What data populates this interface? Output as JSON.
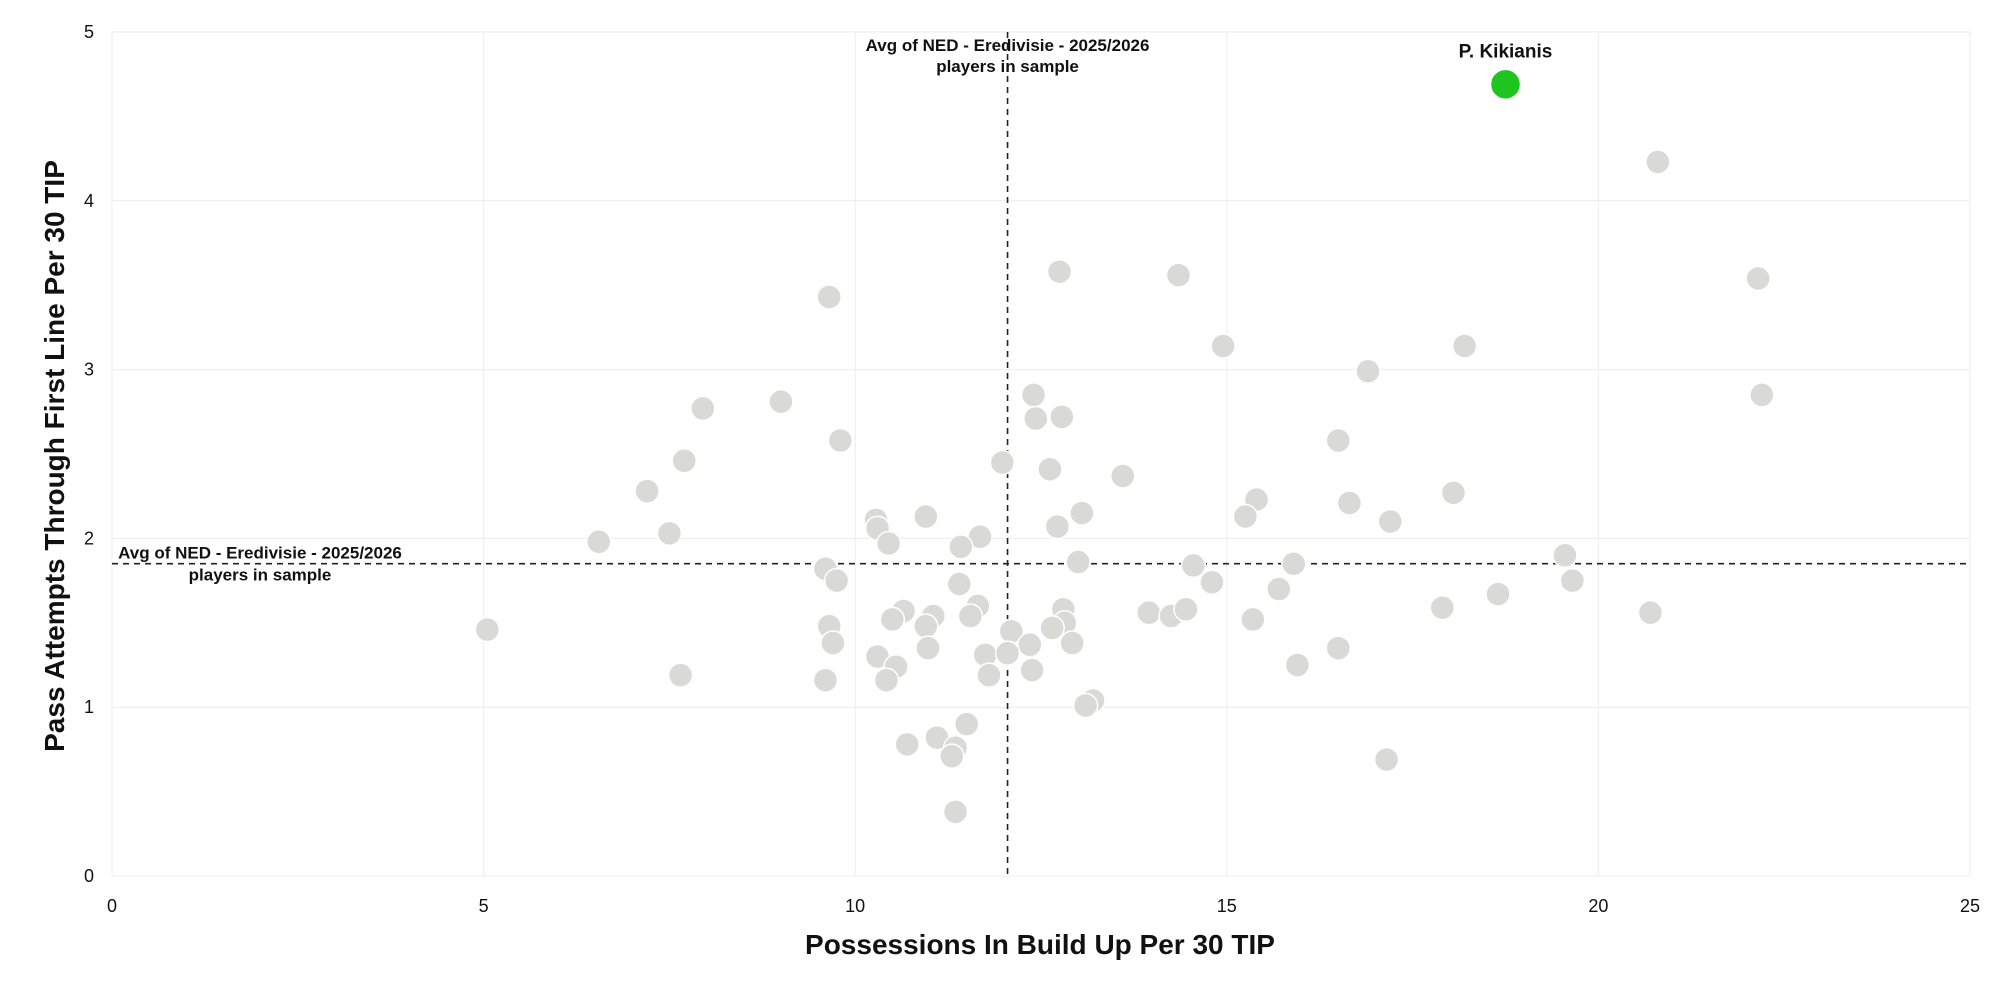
{
  "chart_data": {
    "type": "scatter",
    "xlabel": "Possessions In Build Up Per 30 TIP",
    "ylabel": "Pass Attempts Through First Line Per 30 TIP",
    "xlim": [
      0,
      25
    ],
    "ylim": [
      0,
      5
    ],
    "xticks": [
      0,
      5,
      10,
      15,
      20,
      25
    ],
    "yticks": [
      0,
      1,
      2,
      3,
      4,
      5
    ],
    "grid": true,
    "colors": {
      "point": "#d9d9d6",
      "highlight": "#1fc51f",
      "reference": "#222222"
    },
    "reference_lines": {
      "vertical": {
        "x": 12.05,
        "label_line1": "Avg of NED - Eredivisie - 2025/2026",
        "label_line2": "players in sample"
      },
      "horizontal": {
        "y": 1.85,
        "label_line1": "Avg of NED - Eredivisie - 2025/2026",
        "label_line2": "players in sample"
      }
    },
    "highlight": {
      "name": "P. Kikianis",
      "x": 18.75,
      "y": 4.69
    },
    "points": [
      [
        20.8,
        4.23
      ],
      [
        22.15,
        3.54
      ],
      [
        22.2,
        2.85
      ],
      [
        12.75,
        3.58
      ],
      [
        14.35,
        3.56
      ],
      [
        14.95,
        3.14
      ],
      [
        18.2,
        3.14
      ],
      [
        16.9,
        2.99
      ],
      [
        9.65,
        3.43
      ],
      [
        9.0,
        2.81
      ],
      [
        7.95,
        2.77
      ],
      [
        12.4,
        2.85
      ],
      [
        12.43,
        2.71
      ],
      [
        12.78,
        2.72
      ],
      [
        9.8,
        2.58
      ],
      [
        16.5,
        2.58
      ],
      [
        7.7,
        2.46
      ],
      [
        11.98,
        2.45
      ],
      [
        12.62,
        2.41
      ],
      [
        13.6,
        2.37
      ],
      [
        7.2,
        2.28
      ],
      [
        18.05,
        2.27
      ],
      [
        15.4,
        2.23
      ],
      [
        16.65,
        2.21
      ],
      [
        15.25,
        2.13
      ],
      [
        17.2,
        2.1
      ],
      [
        13.05,
        2.15
      ],
      [
        10.28,
        2.11
      ],
      [
        10.95,
        2.13
      ],
      [
        10.3,
        2.06
      ],
      [
        12.72,
        2.07
      ],
      [
        7.5,
        2.03
      ],
      [
        11.68,
        2.01
      ],
      [
        6.55,
        1.98
      ],
      [
        10.45,
        1.97
      ],
      [
        11.42,
        1.95
      ],
      [
        19.55,
        1.9
      ],
      [
        13.0,
        1.86
      ],
      [
        14.55,
        1.84
      ],
      [
        15.9,
        1.85
      ],
      [
        9.6,
        1.82
      ],
      [
        9.75,
        1.75
      ],
      [
        11.4,
        1.73
      ],
      [
        14.8,
        1.74
      ],
      [
        15.7,
        1.7
      ],
      [
        19.65,
        1.75
      ],
      [
        18.65,
        1.67
      ],
      [
        11.65,
        1.6
      ],
      [
        17.9,
        1.59
      ],
      [
        12.8,
        1.58
      ],
      [
        10.65,
        1.57
      ],
      [
        10.5,
        1.52
      ],
      [
        11.05,
        1.54
      ],
      [
        11.55,
        1.54
      ],
      [
        13.95,
        1.56
      ],
      [
        14.25,
        1.54
      ],
      [
        14.45,
        1.58
      ],
      [
        20.7,
        1.56
      ],
      [
        9.65,
        1.48
      ],
      [
        10.95,
        1.48
      ],
      [
        12.82,
        1.5
      ],
      [
        12.65,
        1.47
      ],
      [
        15.35,
        1.52
      ],
      [
        5.05,
        1.46
      ],
      [
        12.1,
        1.45
      ],
      [
        9.7,
        1.38
      ],
      [
        10.98,
        1.35
      ],
      [
        12.35,
        1.37
      ],
      [
        12.92,
        1.38
      ],
      [
        16.5,
        1.35
      ],
      [
        10.3,
        1.3
      ],
      [
        11.75,
        1.31
      ],
      [
        12.05,
        1.32
      ],
      [
        10.55,
        1.24
      ],
      [
        15.95,
        1.25
      ],
      [
        12.38,
        1.22
      ],
      [
        7.65,
        1.19
      ],
      [
        11.8,
        1.19
      ],
      [
        9.6,
        1.16
      ],
      [
        10.42,
        1.16
      ],
      [
        13.2,
        1.04
      ],
      [
        13.1,
        1.01
      ],
      [
        11.5,
        0.9
      ],
      [
        10.7,
        0.78
      ],
      [
        11.1,
        0.82
      ],
      [
        11.35,
        0.76
      ],
      [
        11.3,
        0.71
      ],
      [
        17.15,
        0.69
      ],
      [
        11.35,
        0.38
      ]
    ]
  }
}
